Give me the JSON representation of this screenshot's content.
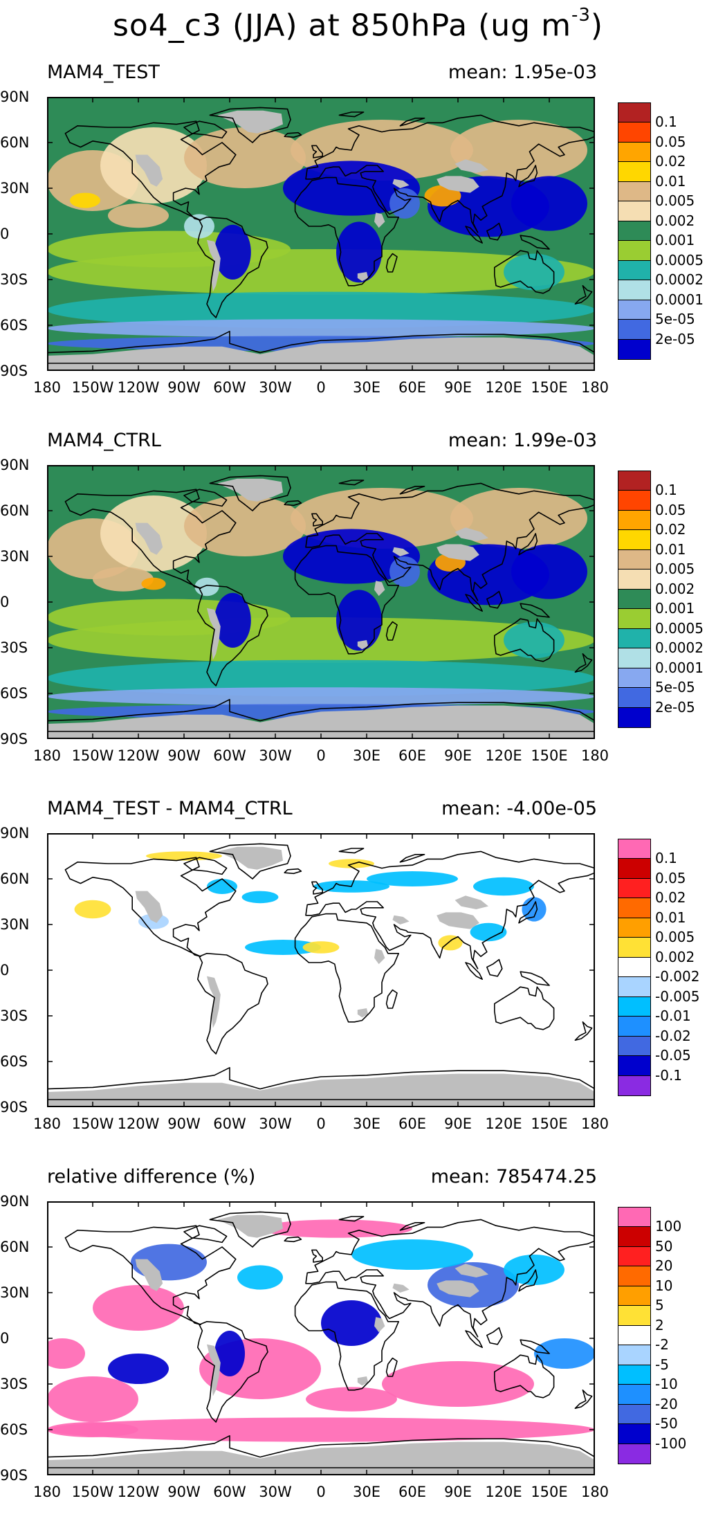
{
  "figure": {
    "title_prefix": "so4_c3 (JJA) at 850hPa (ug m",
    "title_exponent": "-3",
    "title_suffix": ")"
  },
  "lat_labels": [
    "90N",
    "60N",
    "30N",
    "0",
    "30S",
    "60S",
    "90S"
  ],
  "lon_labels": [
    "180",
    "150W",
    "120W",
    "90W",
    "60W",
    "30W",
    "0",
    "30E",
    "60E",
    "90E",
    "120E",
    "150E",
    "180"
  ],
  "colors": {
    "land_masked": "#bebebe",
    "coastline": "#000000"
  },
  "panels": [
    {
      "label": "MAM4_TEST",
      "mean": "mean: 1.95e-03",
      "legend_colors": [
        "#b22222",
        "#ff4500",
        "#ffa500",
        "#ffd700",
        "#deb887",
        "#f5deb3",
        "#2e8b57",
        "#9acd32",
        "#20b2aa",
        "#b0e0e6",
        "#87a8f0",
        "#4169e1",
        "#0000cd"
      ],
      "legend_labels": [
        "0.1",
        "0.05",
        "0.02",
        "0.01",
        "0.005",
        "0.002",
        "0.001",
        "0.0005",
        "0.0002",
        "0.0001",
        "5e-05",
        "2e-05"
      ]
    },
    {
      "label": "MAM4_CTRL",
      "mean": "mean: 1.99e-03",
      "legend_colors": [
        "#b22222",
        "#ff4500",
        "#ffa500",
        "#ffd700",
        "#deb887",
        "#f5deb3",
        "#2e8b57",
        "#9acd32",
        "#20b2aa",
        "#b0e0e6",
        "#87a8f0",
        "#4169e1",
        "#0000cd"
      ],
      "legend_labels": [
        "0.1",
        "0.05",
        "0.02",
        "0.01",
        "0.005",
        "0.002",
        "0.001",
        "0.0005",
        "0.0002",
        "0.0001",
        "5e-05",
        "2e-05"
      ]
    },
    {
      "label": "MAM4_TEST - MAM4_CTRL",
      "mean": "mean: -4.00e-05",
      "legend_colors": [
        "#ff69b4",
        "#cc0000",
        "#ff2020",
        "#ff6a00",
        "#ff9f00",
        "#ffe135",
        "#ffffff",
        "#a9d4ff",
        "#00bfff",
        "#1e90ff",
        "#4169e1",
        "#0000cd",
        "#8a2be2"
      ],
      "legend_labels": [
        "0.1",
        "0.05",
        "0.02",
        "0.01",
        "0.005",
        "0.002",
        "-0.002",
        "-0.005",
        "-0.01",
        "-0.02",
        "-0.05",
        "-0.1"
      ]
    },
    {
      "label": "relative difference (%)",
      "mean": "mean: 785474.25",
      "legend_colors": [
        "#ff69b4",
        "#cc0000",
        "#ff2020",
        "#ff6a00",
        "#ff9f00",
        "#ffe135",
        "#ffffff",
        "#a9d4ff",
        "#00bfff",
        "#1e90ff",
        "#4169e1",
        "#0000cd",
        "#8a2be2"
      ],
      "legend_labels": [
        "100",
        "50",
        "20",
        "10",
        "5",
        "2",
        "-2",
        "-5",
        "-10",
        "-20",
        "-50",
        "-100"
      ]
    }
  ]
}
